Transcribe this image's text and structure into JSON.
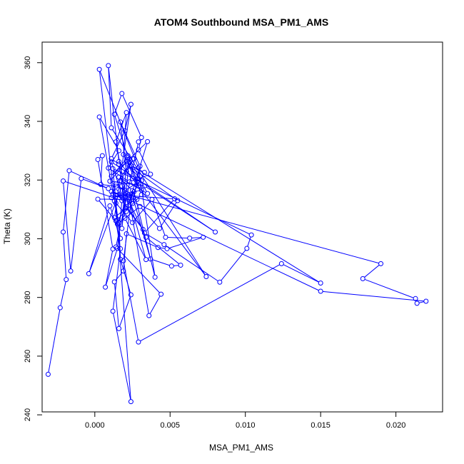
{
  "chart_data": {
    "type": "line",
    "title": "ATOM4 Southbound MSA_PM1_AMS",
    "xlabel": "MSA_PM1_AMS",
    "ylabel": "Theta (K)",
    "xlim": [
      -0.0035,
      0.0231
    ],
    "ylim": [
      241,
      367
    ],
    "xticks": [
      0.0,
      0.005,
      0.01,
      0.015,
      0.02
    ],
    "xtick_labels": [
      "0.000",
      "0.005",
      "0.010",
      "0.015",
      "0.020"
    ],
    "yticks": [
      240,
      260,
      280,
      300,
      320,
      340,
      360
    ],
    "ytick_labels": [
      "240",
      "260",
      "280",
      "300",
      "320",
      "340",
      "360"
    ],
    "series": [
      {
        "name": "Southbound",
        "color": "#0000ff",
        "marker": "open-circle",
        "points": [
          [
            -0.0031,
            253.8
          ],
          [
            -0.0023,
            276.5
          ],
          [
            -0.0019,
            286.1
          ],
          [
            -0.0021,
            302.3
          ],
          [
            -0.0017,
            323.2
          ],
          [
            0.0009,
            317.1
          ],
          [
            -0.0009,
            320.5
          ],
          [
            -0.0016,
            289.0
          ],
          [
            -0.0021,
            319.7
          ],
          [
            0.0018,
            313.0
          ],
          [
            0.0015,
            296.7
          ],
          [
            0.0007,
            283.5
          ],
          [
            0.0012,
            296.5
          ],
          [
            0.0002,
            327.0
          ],
          [
            0.0005,
            328.3
          ],
          [
            0.0004,
            318.5
          ],
          [
            0.0014,
            317.9
          ],
          [
            0.0025,
            315.3
          ],
          [
            0.0011,
            314.0
          ],
          [
            0.0031,
            316.6
          ],
          [
            0.0023,
            319.4
          ],
          [
            0.0009,
            324.1
          ],
          [
            0.0016,
            330.0
          ],
          [
            0.0003,
            341.5
          ],
          [
            0.0013,
            312.8
          ],
          [
            0.0025,
            305.5
          ],
          [
            0.0038,
            313.4
          ],
          [
            0.0047,
            300.5
          ],
          [
            0.0063,
            300.2
          ],
          [
            0.0072,
            300.5
          ],
          [
            0.0048,
            296.6
          ],
          [
            0.0042,
            297.0
          ],
          [
            0.0021,
            301.7
          ],
          [
            0.0019,
            289.0
          ],
          [
            0.0013,
            285.3
          ],
          [
            0.0016,
            269.4
          ],
          [
            0.0024,
            280.9
          ],
          [
            0.0017,
            293.0
          ],
          [
            0.0016,
            305.4
          ],
          [
            0.003,
            311.0
          ],
          [
            0.0043,
            303.5
          ],
          [
            0.0055,
            313.0
          ],
          [
            0.0023,
            324.7
          ],
          [
            0.0031,
            319.8
          ],
          [
            0.002,
            316.5
          ],
          [
            0.0014,
            333.0
          ],
          [
            0.0021,
            343.0
          ],
          [
            0.0019,
            328.7
          ],
          [
            0.0028,
            320.3
          ],
          [
            0.0037,
            322.0
          ],
          [
            0.0029,
            330.3
          ],
          [
            0.0031,
            334.5
          ],
          [
            0.0018,
            349.5
          ],
          [
            0.0013,
            342.4
          ],
          [
            0.0022,
            327.7
          ],
          [
            0.0011,
            321.3
          ],
          [
            0.0035,
            333.1
          ],
          [
            0.0021,
            309.3
          ],
          [
            0.0016,
            325.4
          ],
          [
            0.0011,
            327.3
          ],
          [
            0.002,
            336.8
          ],
          [
            0.0024,
            345.8
          ],
          [
            0.0013,
            307.2
          ],
          [
            0.0021,
            310.5
          ],
          [
            0.0032,
            303.2
          ],
          [
            0.0014,
            316.0
          ],
          [
            0.0025,
            314.6
          ],
          [
            0.0037,
            293.1
          ],
          [
            0.0051,
            290.7
          ],
          [
            0.0057,
            291.0
          ],
          [
            0.0034,
            300.5
          ],
          [
            0.0023,
            312.5
          ],
          [
            0.0017,
            319.7
          ],
          [
            0.0026,
            327.3
          ],
          [
            0.0014,
            318.7
          ],
          [
            0.0012,
            315.2
          ],
          [
            0.0025,
            312.0
          ],
          [
            0.003,
            324.7
          ],
          [
            0.0017,
            339.8
          ],
          [
            0.0021,
            322.9
          ],
          [
            0.0025,
            320.5
          ],
          [
            0.0074,
            287.1
          ],
          [
            0.0011,
            337.8
          ],
          [
            0.0009,
            359.0
          ],
          [
            0.0016,
            326.3
          ],
          [
            0.0029,
            318.0
          ],
          [
            0.0021,
            326.5
          ],
          [
            0.0018,
            303.5
          ],
          [
            0.0023,
            327.3
          ],
          [
            0.001,
            319.6
          ],
          [
            0.0033,
            318.0
          ],
          [
            0.008,
            302.3
          ],
          [
            0.0011,
            326.2
          ],
          [
            0.0018,
            314.8
          ],
          [
            0.0053,
            313.6
          ],
          [
            0.0033,
            302.0
          ],
          [
            0.0046,
            298.0
          ],
          [
            0.0083,
            285.2
          ],
          [
            0.0101,
            296.7
          ],
          [
            0.0104,
            301.3
          ],
          [
            0.0012,
            323.9
          ],
          [
            0.0015,
            306.5
          ],
          [
            0.0031,
            315.0
          ],
          [
            0.0022,
            328.3
          ],
          [
            0.0035,
            315.4
          ],
          [
            0.0016,
            321.0
          ],
          [
            0.0025,
            316.4
          ],
          [
            0.0019,
            292.5
          ],
          [
            0.0029,
            264.8
          ],
          [
            0.0124,
            291.5
          ],
          [
            0.015,
            284.9
          ],
          [
            0.0024,
            325.0
          ],
          [
            0.0033,
            322.6
          ],
          [
            0.0021,
            311.0
          ],
          [
            0.0026,
            316.0
          ],
          [
            0.004,
            286.9
          ],
          [
            0.0029,
            324.1
          ],
          [
            0.0003,
            357.7
          ],
          [
            0.0015,
            305.0
          ],
          [
            0.0022,
            314.9
          ],
          [
            0.019,
            291.5
          ],
          [
            0.0178,
            286.4
          ],
          [
            0.0213,
            279.6
          ],
          [
            0.0214,
            278.0
          ],
          [
            0.022,
            278.7
          ],
          [
            0.015,
            282.1
          ],
          [
            0.0011,
            316.1
          ],
          [
            0.0028,
            313.4
          ],
          [
            0.0002,
            313.5
          ],
          [
            0.0014,
            306.1
          ],
          [
            0.0017,
            296.6
          ],
          [
            0.0012,
            275.3
          ],
          [
            0.0024,
            244.5
          ],
          [
            0.0014,
            312.1
          ],
          [
            0.0017,
            300.1
          ],
          [
            0.001,
            311.2
          ],
          [
            -0.0004,
            288.1
          ],
          [
            0.0018,
            318.0
          ],
          [
            0.002,
            307.0
          ],
          [
            0.0034,
            292.9
          ],
          [
            0.0023,
            313.2
          ],
          [
            0.0036,
            273.8
          ],
          [
            0.0044,
            281.1
          ],
          [
            0.0014,
            297.2
          ],
          [
            0.0029,
            333.0
          ]
        ]
      }
    ]
  }
}
